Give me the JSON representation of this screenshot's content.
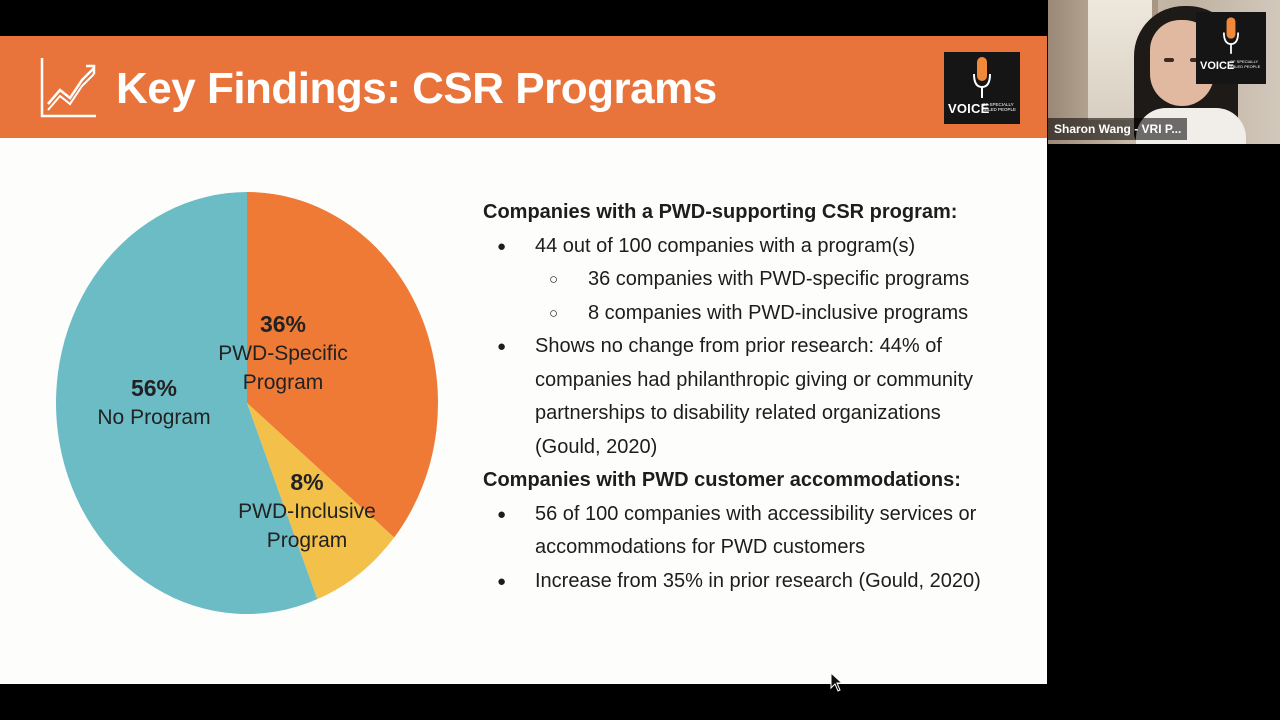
{
  "slide": {
    "title": "Key Findings: CSR Programs",
    "logo": {
      "word": "VOICE",
      "sub": "OF SPECIALLY ABLED PEOPLE"
    }
  },
  "chart_data": {
    "type": "pie",
    "slices": [
      {
        "label": "PWD-Specific Program",
        "label_lines": [
          "PWD-Specific",
          "Program"
        ],
        "percent_text": "36%",
        "value": 36,
        "color": "#ee7a35"
      },
      {
        "label": "PWD-Inclusive Program",
        "label_lines": [
          "PWD-Inclusive",
          "Program"
        ],
        "percent_text": "8%",
        "value": 8,
        "color": "#f3c04a"
      },
      {
        "label": "No Program",
        "label_lines": [
          "No Program"
        ],
        "percent_text": "56%",
        "value": 56,
        "color": "#6cbcc6"
      }
    ]
  },
  "findings": {
    "heading_csr": "Companies with a PWD-supporting CSR program:",
    "csr_points": [
      "44 out of 100 companies with a program(s)",
      "Shows no change from prior research: 44% of",
      "companies had philanthropic giving or community",
      "partnerships to disability related organizations",
      "(Gould, 2020)"
    ],
    "csr_subpoints": [
      "36 companies with PWD-specific programs",
      "8 companies with PWD-inclusive programs"
    ],
    "heading_accom": "Companies with PWD customer accommodations:",
    "accom_points": [
      "56 of 100 companies with accessibility services or",
      "accommodations for PWD customers",
      "Increase from 35% in prior research (Gould, 2020)"
    ],
    "bullet": "●",
    "sub_bullet": "○"
  },
  "video": {
    "participant_name": "Sharon Wang - VRI P...",
    "logo_word": "VOICE",
    "logo_sub": "OF SPECIALLY ABLED PEOPLE"
  }
}
